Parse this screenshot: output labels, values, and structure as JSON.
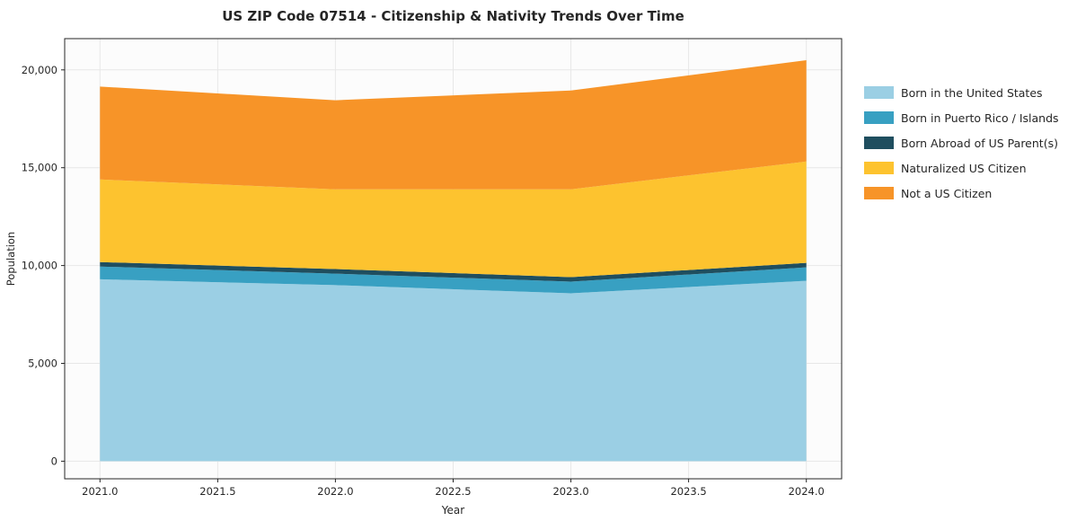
{
  "chart_data": {
    "type": "area",
    "stacked": true,
    "title": "US ZIP Code 07514 - Citizenship & Nativity Trends Over Time",
    "xlabel": "Year",
    "ylabel": "Population",
    "x": [
      2021,
      2022,
      2023,
      2024
    ],
    "series": [
      {
        "name": "Born in the United States",
        "color": "#9bcfe4",
        "values": [
          9300,
          9000,
          8580,
          9220
        ]
      },
      {
        "name": "Born in Puerto Rico / Islands",
        "color": "#38a0c2",
        "values": [
          650,
          590,
          600,
          690
        ]
      },
      {
        "name": "Born Abroad of US Parent(s)",
        "color": "#1f4e5f",
        "values": [
          230,
          230,
          230,
          230
        ]
      },
      {
        "name": "Naturalized US Citizen",
        "color": "#fdc32f",
        "values": [
          4220,
          4080,
          4490,
          5180
        ]
      },
      {
        "name": "Not a US Citizen",
        "color": "#f79428",
        "values": [
          4750,
          4550,
          5050,
          5180
        ]
      }
    ],
    "stack_totals": [
      19150,
      18450,
      18950,
      20500
    ],
    "xticks": [
      "2021.0",
      "2021.5",
      "2022.0",
      "2022.5",
      "2023.0",
      "2023.5",
      "2024.0"
    ],
    "yticks": [
      "0",
      "5,000",
      "10,000",
      "15,000",
      "20,000"
    ],
    "xlim": [
      2020.85,
      2024.15
    ],
    "ylim": [
      -900,
      21600
    ],
    "grid": true,
    "grid_color": "#e7e7e7",
    "plot_bg": "#fcfcfc",
    "spine_color": "#262626",
    "text_color": "#262626",
    "legend_position": "right-outside"
  }
}
